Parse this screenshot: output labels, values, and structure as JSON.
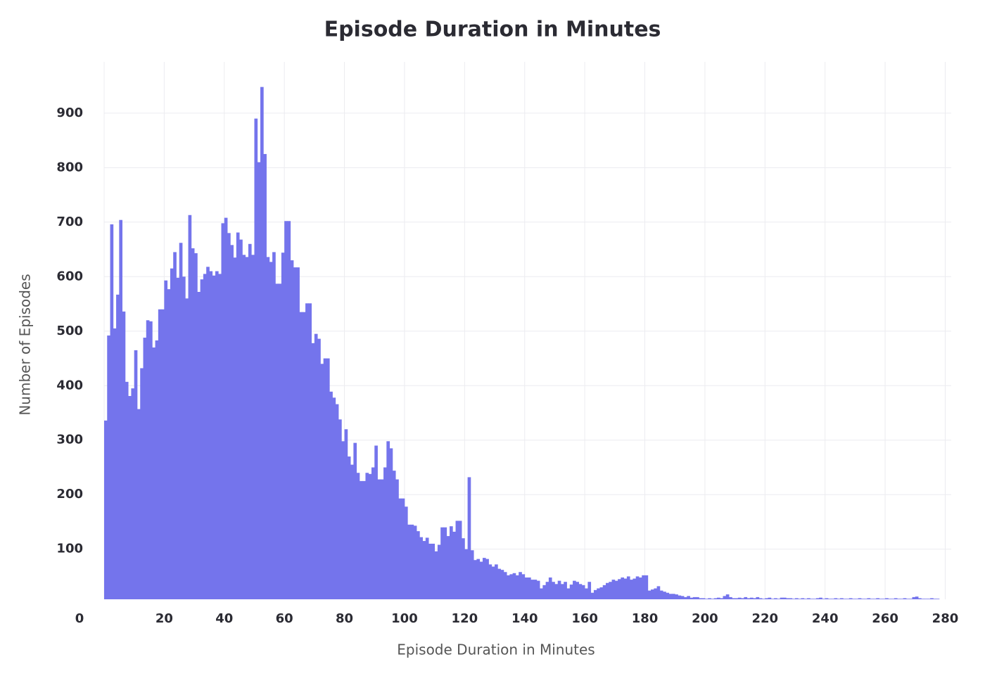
{
  "chart_data": {
    "type": "histogram",
    "title": "Episode Duration in Minutes",
    "x_label": "Episode Duration in Minutes",
    "y_label": "Number of Episodes",
    "color": "#7474ec",
    "grid": true,
    "xlim": [
      0,
      282
    ],
    "ylim": [
      8,
      994
    ],
    "xticks": [
      0,
      20,
      40,
      60,
      80,
      100,
      120,
      140,
      160,
      180,
      200,
      220,
      240,
      260,
      280
    ],
    "yticks": [
      100,
      200,
      300,
      400,
      500,
      600,
      700,
      800,
      900
    ],
    "bins": [
      0,
      1,
      2,
      3,
      4,
      5,
      6,
      7,
      8,
      9,
      10,
      11,
      12,
      13,
      14,
      15,
      16,
      17,
      18,
      19,
      20,
      21,
      22,
      23,
      24,
      25,
      26,
      27,
      28,
      29,
      30,
      31,
      32,
      33,
      34,
      35,
      36,
      37,
      38,
      39,
      40,
      41,
      42,
      43,
      44,
      45,
      46,
      47,
      48,
      49,
      50,
      51,
      52,
      53,
      54,
      55,
      56,
      57,
      58,
      59,
      60,
      61,
      62,
      63,
      64,
      65,
      66,
      67,
      68,
      69,
      70,
      71,
      72,
      73,
      74,
      75,
      76,
      77,
      78,
      79,
      80,
      81,
      82,
      83,
      84,
      85,
      86,
      87,
      88,
      89,
      90,
      91,
      92,
      93,
      94,
      95,
      96,
      97,
      98,
      99,
      100,
      101,
      102,
      103,
      104,
      105,
      106,
      107,
      108,
      109,
      110,
      111,
      112,
      113,
      114,
      115,
      116,
      117,
      118,
      119,
      120,
      121,
      122,
      123,
      124,
      125,
      126,
      127,
      128,
      129,
      130,
      131,
      132,
      133,
      134,
      135,
      136,
      137,
      138,
      139,
      140,
      141,
      142,
      143,
      144,
      145,
      146,
      147,
      148,
      149,
      150,
      151,
      152,
      153,
      154,
      155,
      156,
      157,
      158,
      159,
      160,
      161,
      162,
      163,
      164,
      165,
      166,
      167,
      168,
      169,
      170,
      171,
      172,
      173,
      174,
      175,
      176,
      177,
      178,
      179,
      180,
      181,
      182,
      183,
      184,
      185,
      186,
      187,
      188,
      189,
      190,
      191,
      192,
      193,
      194,
      195,
      196,
      197,
      198,
      199,
      200,
      201,
      202,
      203,
      204,
      205,
      206,
      207,
      208,
      209,
      210,
      211,
      212,
      213,
      214,
      215,
      216,
      217,
      218,
      219,
      220,
      221,
      222,
      223,
      224,
      225,
      226,
      227,
      228,
      229,
      230,
      231,
      232,
      233,
      234,
      235,
      236,
      237,
      238,
      239,
      240,
      241,
      242,
      243,
      244,
      245,
      246,
      247,
      248,
      249,
      250,
      251,
      252,
      253,
      254,
      255,
      256,
      257,
      258,
      259,
      260,
      261,
      262,
      263,
      264,
      265,
      266,
      267,
      268,
      269,
      270,
      271,
      272,
      273,
      274,
      275,
      276,
      277,
      278
    ],
    "values": [
      336,
      492,
      696,
      505,
      567,
      704,
      536,
      407,
      381,
      395,
      465,
      357,
      432,
      488,
      520,
      518,
      470,
      483,
      540,
      540,
      593,
      577,
      615,
      645,
      598,
      662,
      600,
      560,
      713,
      652,
      643,
      572,
      595,
      605,
      618,
      610,
      602,
      610,
      605,
      698,
      708,
      680,
      658,
      635,
      681,
      668,
      640,
      636,
      660,
      640,
      890,
      810,
      948,
      825,
      636,
      627,
      645,
      587,
      587,
      644,
      702,
      702,
      630,
      617,
      617,
      535,
      535,
      551,
      551,
      478,
      495,
      486,
      440,
      450,
      450,
      389,
      378,
      366,
      338,
      298,
      320,
      270,
      255,
      295,
      240,
      225,
      225,
      240,
      238,
      250,
      290,
      228,
      228,
      250,
      298,
      285,
      244,
      228,
      193,
      193,
      178,
      145,
      145,
      143,
      133,
      122,
      115,
      121,
      110,
      110,
      96,
      108,
      140,
      140,
      124,
      142,
      132,
      152,
      152,
      120,
      100,
      232,
      98,
      80,
      82,
      77,
      84,
      82,
      72,
      68,
      72,
      64,
      62,
      58,
      52,
      54,
      56,
      52,
      58,
      54,
      48,
      48,
      44,
      44,
      42,
      28,
      34,
      40,
      48,
      40,
      36,
      42,
      36,
      40,
      28,
      35,
      42,
      40,
      36,
      34,
      28,
      40,
      20,
      25,
      28,
      30,
      34,
      38,
      40,
      44,
      42,
      45,
      48,
      46,
      50,
      44,
      46,
      50,
      48,
      52,
      52,
      24,
      26,
      28,
      32,
      24,
      22,
      20,
      18,
      18,
      17,
      15,
      14,
      12,
      14,
      11,
      12,
      12,
      10,
      10,
      9,
      10,
      9,
      10,
      11,
      10,
      14,
      17,
      12,
      10,
      10,
      11,
      10,
      12,
      10,
      11,
      10,
      12,
      10,
      9,
      10,
      11,
      9,
      10,
      9,
      11,
      11,
      10,
      10,
      9,
      10,
      9,
      10,
      9,
      10,
      9,
      9,
      10,
      11,
      9,
      10,
      9,
      9,
      10,
      9,
      10,
      9,
      9,
      10,
      9,
      9,
      10,
      9,
      9,
      10,
      9,
      9,
      10,
      9,
      9,
      10,
      9,
      9,
      10,
      9,
      9,
      10,
      9,
      9,
      12,
      13,
      10,
      9,
      9,
      9,
      10,
      9,
      9
    ]
  }
}
